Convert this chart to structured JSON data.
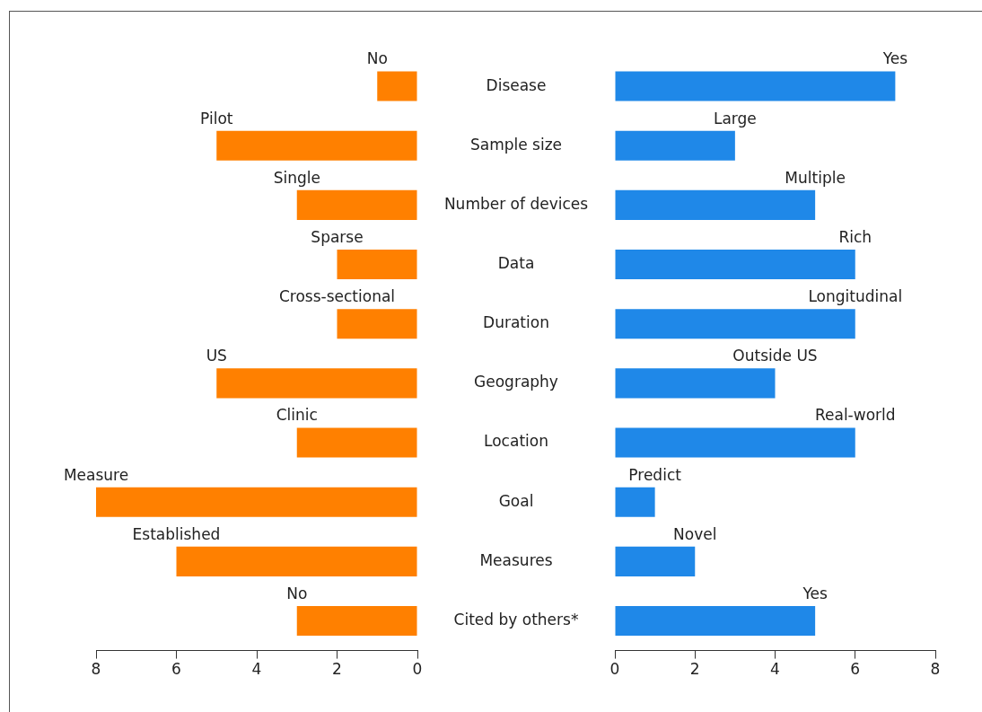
{
  "chart_data": [
    {
      "type": "bar",
      "orientation": "horizontal",
      "categories": [
        "Disease",
        "Sample size",
        "Number of devices",
        "Data",
        "Duration",
        "Geography",
        "Location",
        "Goal",
        "Measures",
        "Cited by others*"
      ],
      "series": [
        {
          "color": "#ff8000",
          "values": [
            1,
            5,
            3,
            2,
            2,
            5,
            3,
            8,
            6,
            3
          ]
        }
      ],
      "xlim": [
        8,
        0
      ],
      "xticks": [
        8,
        6,
        4,
        2,
        0
      ],
      "annotations": [
        {
          "text": "No",
          "x": 1,
          "y": "Disease"
        },
        {
          "text": "Pilot",
          "x": 5,
          "y": "Sample size"
        },
        {
          "text": "Single",
          "x": 3,
          "y": "Number of devices"
        },
        {
          "text": "Sparse",
          "x": 2,
          "y": "Data"
        },
        {
          "text": "Cross-sectional",
          "x": 2,
          "y": "Duration"
        },
        {
          "text": "US",
          "x": 5,
          "y": "Geography"
        },
        {
          "text": "Clinic",
          "x": 3,
          "y": "Location"
        },
        {
          "text": "Measure",
          "x": 8,
          "y": "Goal"
        },
        {
          "text": "Established",
          "x": 6,
          "y": "Measures"
        },
        {
          "text": "No",
          "x": 3,
          "y": "Cited by others*"
        }
      ]
    },
    {
      "type": "bar",
      "orientation": "horizontal",
      "categories": [
        "Disease",
        "Sample size",
        "Number of devices",
        "Data",
        "Duration",
        "Geography",
        "Location",
        "Goal",
        "Measures",
        "Cited by others*"
      ],
      "series": [
        {
          "color": "#1f88e8",
          "values": [
            7,
            3,
            5,
            6,
            6,
            4,
            6,
            1,
            2,
            5
          ]
        }
      ],
      "xlim": [
        0,
        8
      ],
      "xticks": [
        0,
        2,
        4,
        6,
        8
      ],
      "tick_labels": "x",
      "annotations": [
        {
          "text": "Yes",
          "x": 7,
          "y": "Disease"
        },
        {
          "text": "Large",
          "x": 3,
          "y": "Sample size"
        },
        {
          "text": "Multiple",
          "x": 5,
          "y": "Number of devices"
        },
        {
          "text": "Rich",
          "x": 6,
          "y": "Data"
        },
        {
          "text": "Longitudinal",
          "x": 6,
          "y": "Duration"
        },
        {
          "text": "Outside US",
          "x": 4,
          "y": "Geography"
        },
        {
          "text": "Real-world",
          "x": 6,
          "y": "Location"
        },
        {
          "text": "Predict",
          "x": 1,
          "y": "Goal"
        },
        {
          "text": "Novel",
          "x": 2,
          "y": "Measures"
        },
        {
          "text": "Yes",
          "x": 5,
          "y": "Cited by others*"
        }
      ]
    }
  ]
}
